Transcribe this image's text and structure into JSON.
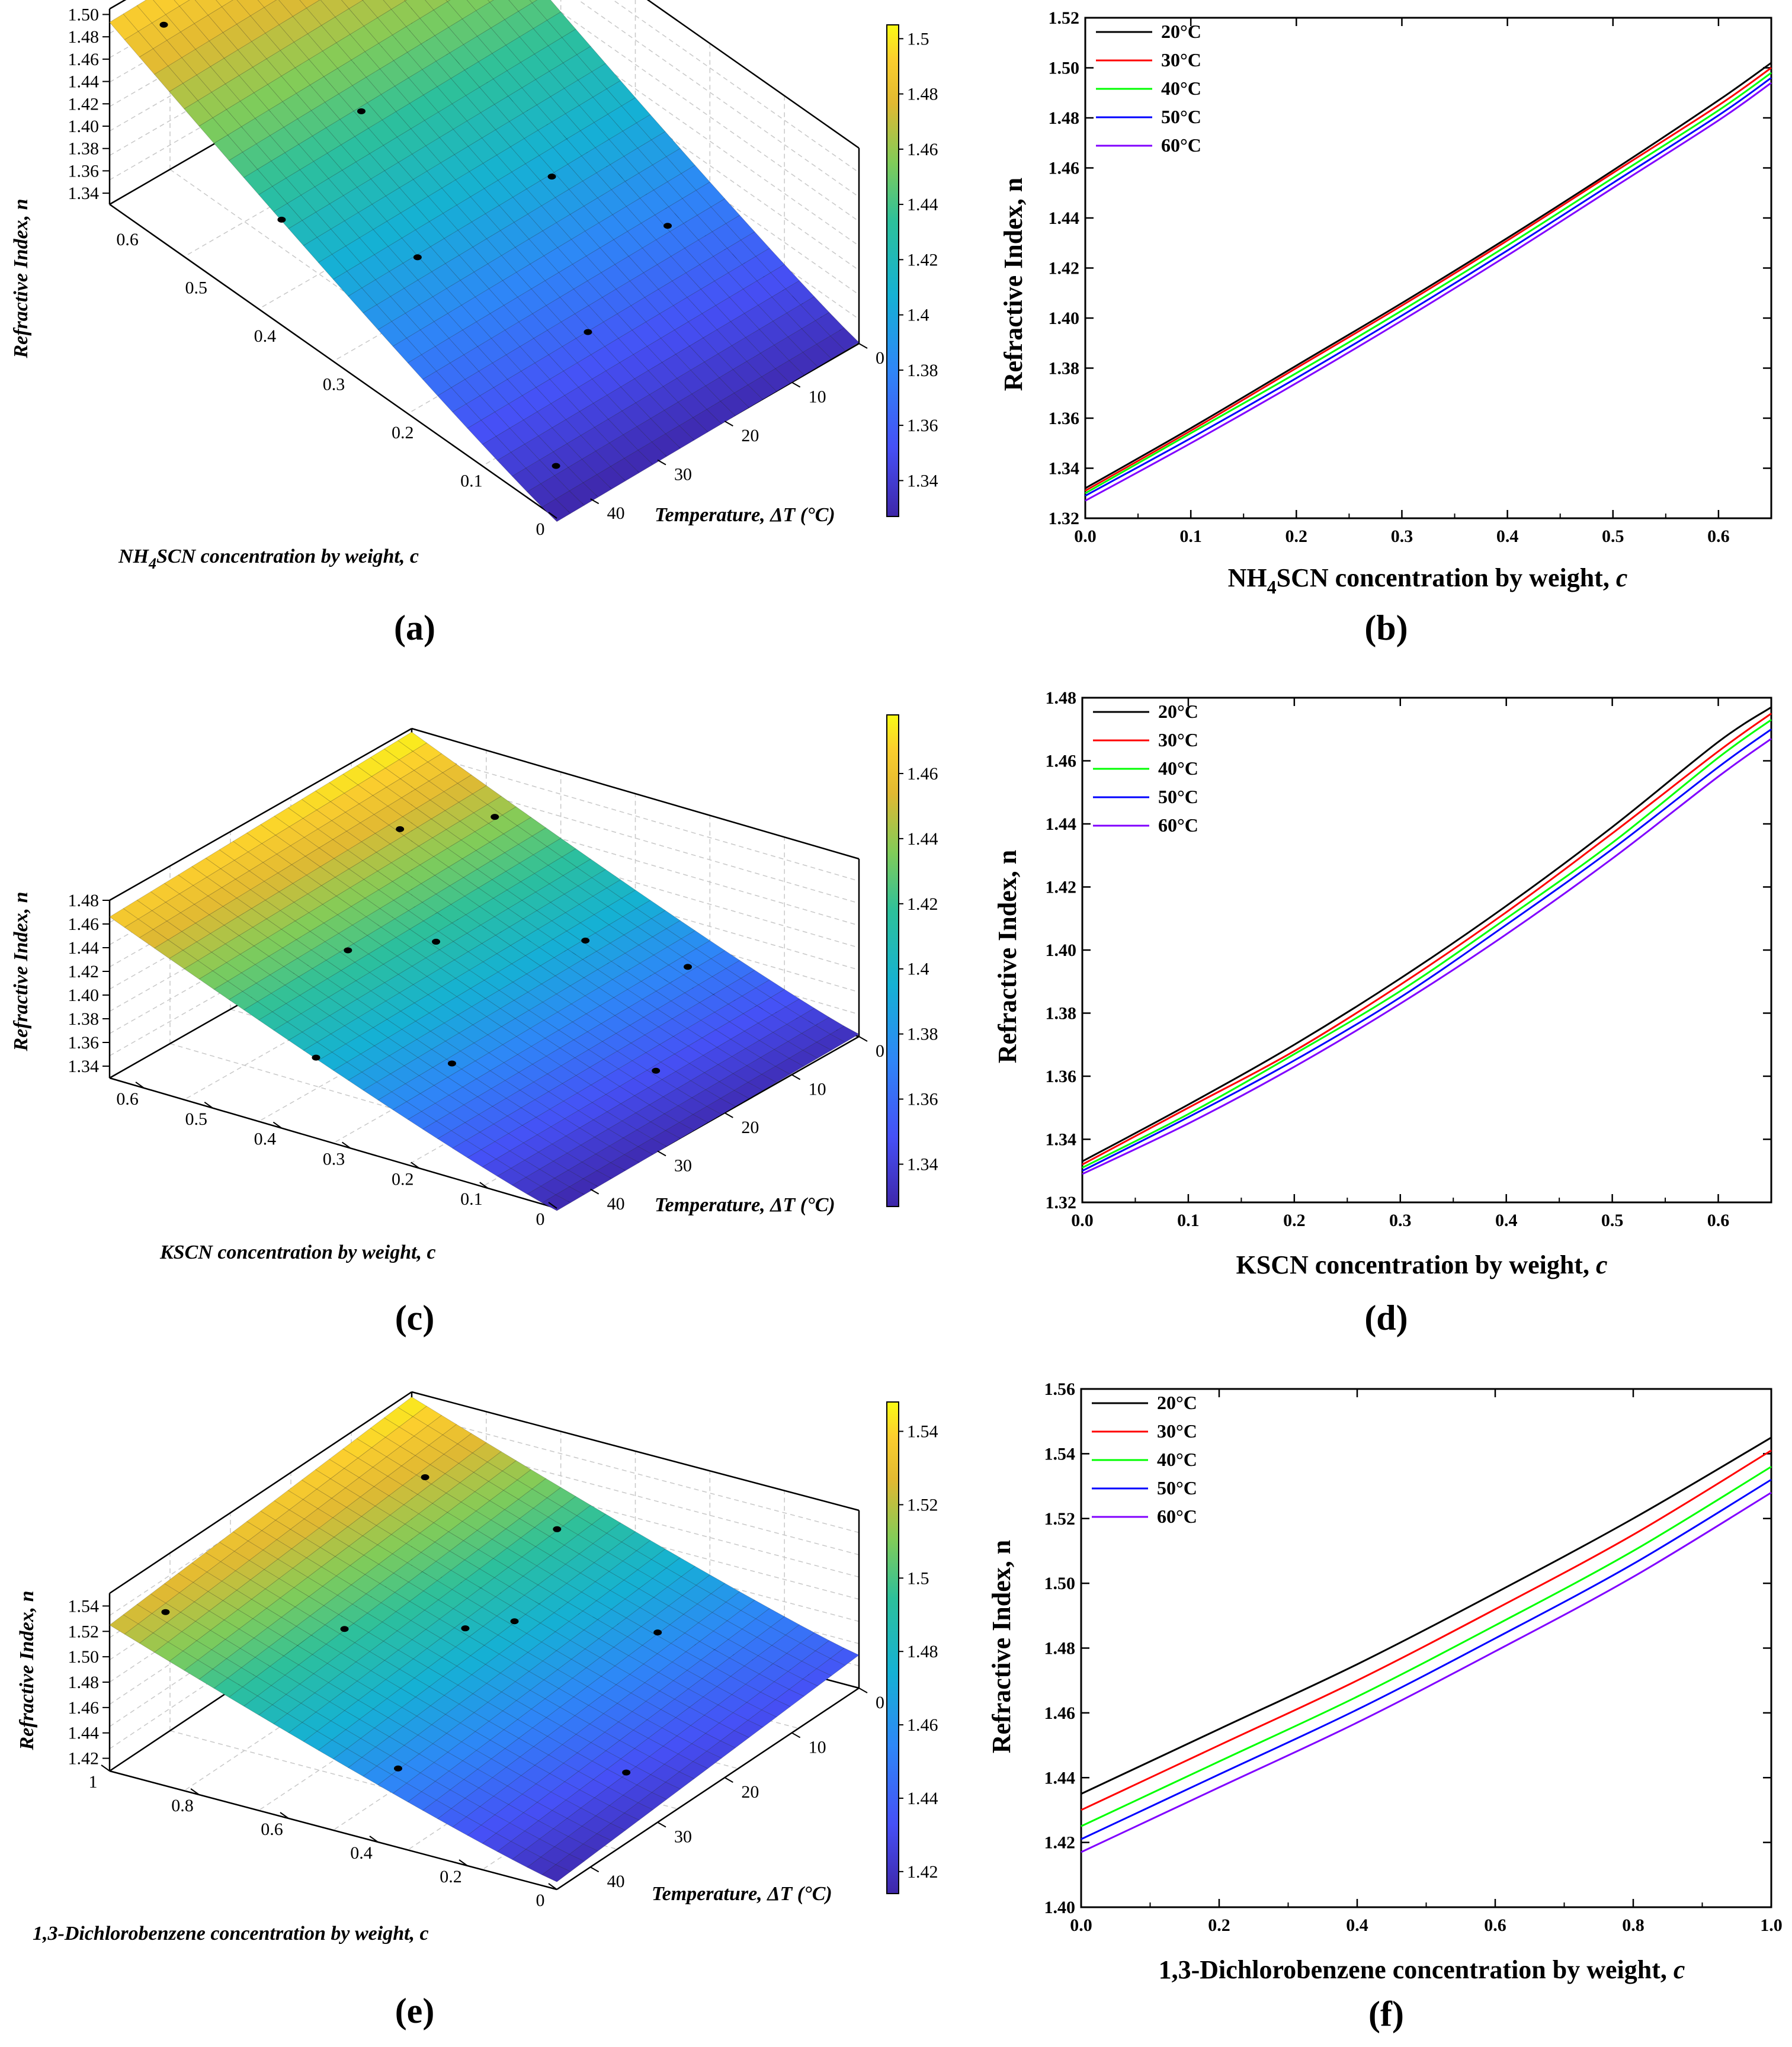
{
  "figure": {
    "background": "#ffffff"
  },
  "chart_data": [
    {
      "id": "a",
      "panel_label": "(a)",
      "type": "surface3d",
      "title": "",
      "zlabel": "Refractive Index, n",
      "xlabel": "NH4SCN concentration by weight, c",
      "xlabel_parts": [
        "NH",
        "4",
        "SCN concentration by weight, c"
      ],
      "ylabel": "Temperature, ΔT (°C)",
      "ylabel_parts": [
        "Temperature, ",
        "ΔT",
        " (°C)"
      ],
      "x_ticks": [
        "0.6",
        "0.5",
        "0.4",
        "0.3",
        "0.2",
        "0.1",
        "0"
      ],
      "y_ticks": [
        "0",
        "10",
        "20",
        "30",
        "40"
      ],
      "z_ticks": [
        "1.50",
        "1.48",
        "1.46",
        "1.44",
        "1.42",
        "1.40",
        "1.38",
        "1.36",
        "1.34"
      ],
      "colorbar_ticks": [
        "1.5",
        "1.48",
        "1.46",
        "1.44",
        "1.42",
        "1.4",
        "1.38",
        "1.36",
        "1.34"
      ],
      "zlim": [
        1.33,
        1.505
      ],
      "colorbar_range": [
        1.327,
        1.505
      ],
      "x_range": [
        0,
        0.65
      ],
      "y_range": [
        0,
        45
      ],
      "surface_corners": {
        "c0_t0": 1.331,
        "c0_t45": 1.327,
        "cmax_t0": 1.502,
        "cmax_t45": 1.493
      },
      "measured_points": [
        {
          "c": 0.62,
          "t": 40,
          "n": 1.49
        },
        {
          "c": 0.5,
          "t": 5,
          "n": 1.47
        },
        {
          "c": 0.45,
          "t": 28,
          "n": 1.45
        },
        {
          "c": 0.4,
          "t": 45,
          "n": 1.43
        },
        {
          "c": 0.3,
          "t": 15,
          "n": 1.42
        },
        {
          "c": 0.3,
          "t": 35,
          "n": 1.41
        },
        {
          "c": 0.2,
          "t": 8,
          "n": 1.39
        },
        {
          "c": 0.15,
          "t": 25,
          "n": 1.38
        },
        {
          "c": 0.05,
          "t": 40,
          "n": 1.34
        }
      ]
    },
    {
      "id": "b",
      "panel_label": "(b)",
      "type": "line",
      "title": "",
      "xlabel_parts": [
        "NH",
        "4",
        "SCN concentration by weight, ",
        "c"
      ],
      "xlabel": "NH4SCN concentration by weight, c",
      "ylabel": "Refractive Index, n",
      "xlim": [
        0,
        0.65
      ],
      "ylim": [
        1.32,
        1.52
      ],
      "x_ticks": [
        "0.0",
        "0.1",
        "0.2",
        "0.3",
        "0.4",
        "0.5",
        "0.6"
      ],
      "y_ticks": [
        "1.32",
        "1.34",
        "1.36",
        "1.38",
        "1.40",
        "1.42",
        "1.44",
        "1.46",
        "1.48",
        "1.50",
        "1.52"
      ],
      "legend_position": "top-left",
      "x": [
        0,
        0.1,
        0.2,
        0.3,
        0.4,
        0.5,
        0.6,
        0.65
      ],
      "series": [
        {
          "name": "20°C",
          "color": "#000000",
          "values": [
            1.332,
            1.356,
            1.381,
            1.406,
            1.432,
            1.459,
            1.487,
            1.502
          ]
        },
        {
          "name": "30°C",
          "color": "#ff0000",
          "values": [
            1.331,
            1.355,
            1.38,
            1.405,
            1.431,
            1.458,
            1.485,
            1.5
          ]
        },
        {
          "name": "40°C",
          "color": "#00ff00",
          "values": [
            1.33,
            1.354,
            1.378,
            1.403,
            1.429,
            1.456,
            1.483,
            1.498
          ]
        },
        {
          "name": "50°C",
          "color": "#0000ff",
          "values": [
            1.329,
            1.352,
            1.376,
            1.401,
            1.427,
            1.454,
            1.481,
            1.496
          ]
        },
        {
          "name": "60°C",
          "color": "#8000ff",
          "values": [
            1.327,
            1.35,
            1.374,
            1.399,
            1.425,
            1.452,
            1.479,
            1.494
          ]
        }
      ]
    },
    {
      "id": "c",
      "panel_label": "(c)",
      "type": "surface3d",
      "title": "",
      "zlabel": "Refractive Index, n",
      "xlabel": "KSCN concentration by weight, c",
      "xlabel_parts": [
        "KSCN concentration by weight, c",
        "",
        ""
      ],
      "ylabel": "Temperature, ΔT (°C)",
      "ylabel_parts": [
        "Temperature, ",
        "ΔT",
        " (°C)"
      ],
      "x_ticks": [
        "0.6",
        "0.5",
        "0.4",
        "0.3",
        "0.2",
        "0.1",
        "0"
      ],
      "y_ticks": [
        "0",
        "10",
        "20",
        "30",
        "40"
      ],
      "z_ticks": [
        "1.48",
        "1.46",
        "1.44",
        "1.42",
        "1.40",
        "1.38",
        "1.36",
        "1.34"
      ],
      "colorbar_ticks": [
        "1.46",
        "1.44",
        "1.42",
        "1.4",
        "1.38",
        "1.36",
        "1.34"
      ],
      "zlim": [
        1.33,
        1.48
      ],
      "colorbar_range": [
        1.327,
        1.478
      ],
      "x_range": [
        0,
        0.65
      ],
      "y_range": [
        0,
        45
      ],
      "surface_corners": {
        "c0_t0": 1.332,
        "c0_t45": 1.328,
        "cmax_t0": 1.477,
        "cmax_t45": 1.466
      },
      "measured_points": [
        {
          "c": 0.55,
          "t": 12,
          "n": 1.46
        },
        {
          "c": 0.5,
          "t": 3,
          "n": 1.45
        },
        {
          "c": 0.45,
          "t": 30,
          "n": 1.42
        },
        {
          "c": 0.4,
          "t": 22,
          "n": 1.41
        },
        {
          "c": 0.35,
          "t": 45,
          "n": 1.39
        },
        {
          "c": 0.3,
          "t": 10,
          "n": 1.39
        },
        {
          "c": 0.25,
          "t": 35,
          "n": 1.37
        },
        {
          "c": 0.2,
          "t": 5,
          "n": 1.37
        },
        {
          "c": 0.1,
          "t": 20,
          "n": 1.35
        }
      ]
    },
    {
      "id": "d",
      "panel_label": "(d)",
      "type": "line",
      "title": "",
      "xlabel_parts": [
        "KSCN concentration by weight, ",
        "",
        "",
        "c"
      ],
      "xlabel": "KSCN concentration by weight, c",
      "ylabel": "Refractive Index, n",
      "xlim": [
        0,
        0.65
      ],
      "ylim": [
        1.32,
        1.48
      ],
      "x_ticks": [
        "0.0",
        "0.1",
        "0.2",
        "0.3",
        "0.4",
        "0.5",
        "0.6"
      ],
      "y_ticks": [
        "1.32",
        "1.34",
        "1.36",
        "1.38",
        "1.40",
        "1.42",
        "1.44",
        "1.46",
        "1.48"
      ],
      "legend_position": "top-left",
      "x": [
        0,
        0.1,
        0.2,
        0.3,
        0.4,
        0.5,
        0.6,
        0.65
      ],
      "series": [
        {
          "name": "20°C",
          "color": "#000000",
          "values": [
            1.333,
            1.351,
            1.37,
            1.391,
            1.414,
            1.439,
            1.466,
            1.477
          ]
        },
        {
          "name": "30°C",
          "color": "#ff0000",
          "values": [
            1.332,
            1.35,
            1.368,
            1.389,
            1.412,
            1.437,
            1.463,
            1.475
          ]
        },
        {
          "name": "40°C",
          "color": "#00ff00",
          "values": [
            1.331,
            1.348,
            1.367,
            1.387,
            1.41,
            1.434,
            1.461,
            1.473
          ]
        },
        {
          "name": "50°C",
          "color": "#0000ff",
          "values": [
            1.33,
            1.347,
            1.365,
            1.385,
            1.408,
            1.432,
            1.458,
            1.47
          ]
        },
        {
          "name": "60°C",
          "color": "#8000ff",
          "values": [
            1.329,
            1.345,
            1.363,
            1.383,
            1.405,
            1.429,
            1.455,
            1.467
          ]
        }
      ]
    },
    {
      "id": "e",
      "panel_label": "(e)",
      "type": "surface3d",
      "title": "",
      "zlabel": "Refractive Index, n",
      "xlabel": "1,3-Dichlorobenzene concentration by weight, c",
      "xlabel_parts": [
        "1,3-Dichlorobenzene concentration by weight, c",
        "",
        ""
      ],
      "ylabel": "Temperature, ΔT (°C)",
      "ylabel_parts": [
        "Temperature, ",
        "ΔT",
        " (°C)"
      ],
      "x_ticks": [
        "1",
        "0.8",
        "0.6",
        "0.4",
        "0.2",
        "0"
      ],
      "y_ticks": [
        "0",
        "10",
        "20",
        "30",
        "40"
      ],
      "z_ticks": [
        "1.54",
        "1.52",
        "1.50",
        "1.48",
        "1.46",
        "1.44",
        "1.42"
      ],
      "colorbar_ticks": [
        "1.54",
        "1.52",
        "1.5",
        "1.48",
        "1.46",
        "1.44",
        "1.42"
      ],
      "zlim": [
        1.41,
        1.55
      ],
      "colorbar_range": [
        1.414,
        1.548
      ],
      "x_range": [
        0,
        1
      ],
      "y_range": [
        0,
        45
      ],
      "surface_corners": {
        "c0_t0": 1.436,
        "c0_t45": 1.416,
        "cmax_t0": 1.546,
        "cmax_t45": 1.525
      },
      "measured_points": [
        {
          "c": 0.95,
          "t": 40,
          "n": 1.53
        },
        {
          "c": 0.85,
          "t": 8,
          "n": 1.53
        },
        {
          "c": 0.7,
          "t": 30,
          "n": 1.5
        },
        {
          "c": 0.6,
          "t": 5,
          "n": 1.5
        },
        {
          "c": 0.55,
          "t": 22,
          "n": 1.48
        },
        {
          "c": 0.5,
          "t": 18,
          "n": 1.47
        },
        {
          "c": 0.4,
          "t": 42,
          "n": 1.46
        },
        {
          "c": 0.3,
          "t": 10,
          "n": 1.46
        },
        {
          "c": 0.1,
          "t": 28,
          "n": 1.43
        }
      ]
    },
    {
      "id": "f",
      "panel_label": "(f)",
      "type": "line",
      "title": "",
      "xlabel_parts": [
        "1,3-Dichlorobenzene concentration by weight, ",
        "",
        "",
        "c"
      ],
      "xlabel": "1,3-Dichlorobenzene concentration by weight, c",
      "ylabel": "Refractive Index, n",
      "xlim": [
        0,
        1
      ],
      "ylim": [
        1.4,
        1.56
      ],
      "x_ticks": [
        "0.0",
        "0.2",
        "0.4",
        "0.6",
        "0.8",
        "1.0"
      ],
      "y_ticks": [
        "1.40",
        "1.42",
        "1.44",
        "1.46",
        "1.48",
        "1.50",
        "1.52",
        "1.54",
        "1.56"
      ],
      "legend_position": "top-left",
      "x": [
        0,
        0.2,
        0.4,
        0.6,
        0.8,
        1.0
      ],
      "series": [
        {
          "name": "20°C",
          "color": "#000000",
          "values": [
            1.435,
            1.455,
            1.475,
            1.497,
            1.52,
            1.545
          ]
        },
        {
          "name": "30°C",
          "color": "#ff0000",
          "values": [
            1.43,
            1.45,
            1.47,
            1.492,
            1.515,
            1.541
          ]
        },
        {
          "name": "40°C",
          "color": "#00ff00",
          "values": [
            1.425,
            1.445,
            1.465,
            1.487,
            1.51,
            1.536
          ]
        },
        {
          "name": "50°C",
          "color": "#0000ff",
          "values": [
            1.421,
            1.441,
            1.461,
            1.483,
            1.506,
            1.532
          ]
        },
        {
          "name": "60°C",
          "color": "#8000ff",
          "values": [
            1.417,
            1.437,
            1.457,
            1.479,
            1.502,
            1.528
          ]
        }
      ]
    }
  ]
}
